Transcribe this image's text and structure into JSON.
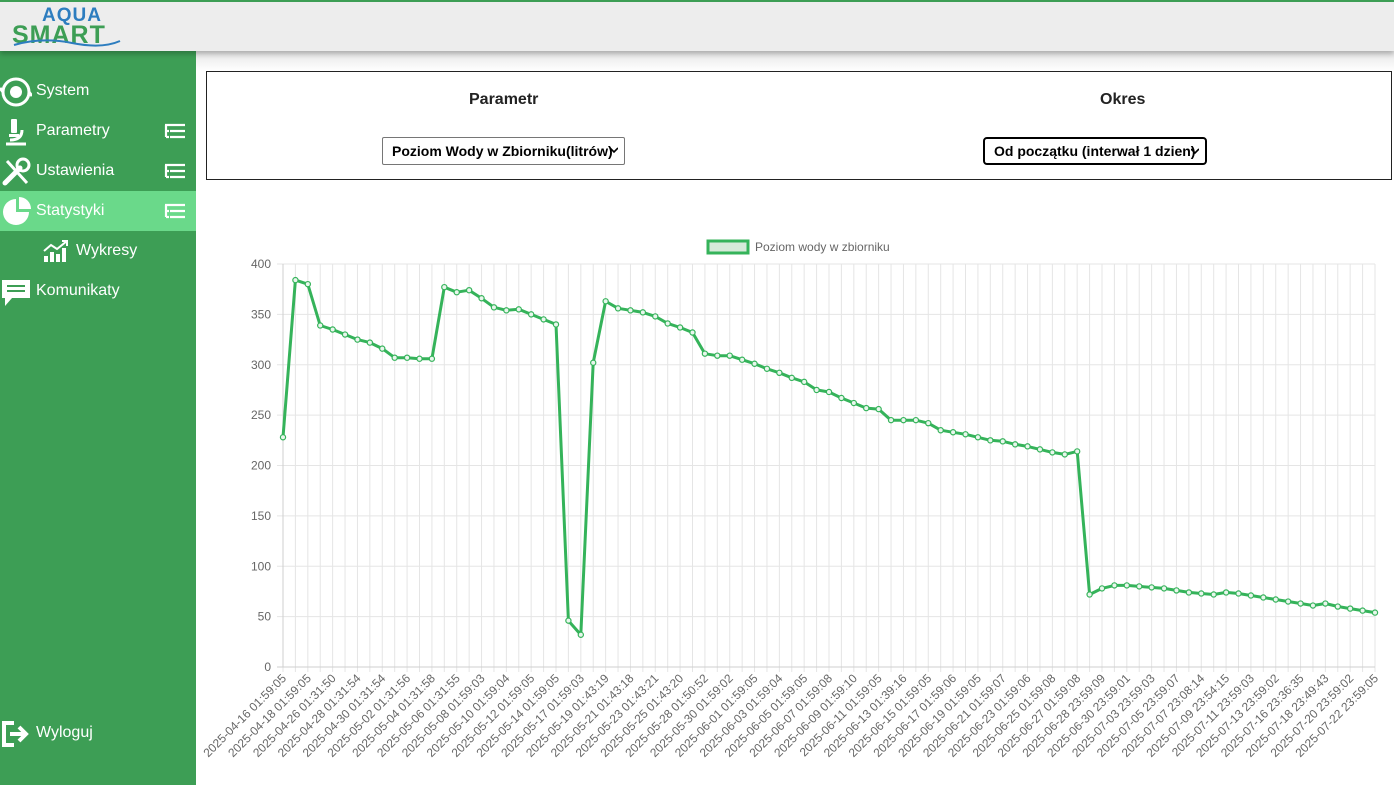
{
  "logo": {
    "line1": "AQUA",
    "line2": "SMART"
  },
  "sidebar": {
    "items": [
      {
        "label": "System",
        "icon": "recycle-gear-icon"
      },
      {
        "label": "Parametry",
        "icon": "microscope-icon"
      },
      {
        "label": "Ustawienia",
        "icon": "tools-icon"
      },
      {
        "label": "Statystyki",
        "icon": "pie-chart-icon"
      },
      {
        "label": "Wykresy",
        "icon": "line-chart-icon"
      },
      {
        "label": "Komunikaty",
        "icon": "message-icon"
      }
    ],
    "logout": {
      "label": "Wyloguj",
      "icon": "logout-icon"
    }
  },
  "filters": {
    "parametr": {
      "title": "Parametr",
      "selected": "Poziom Wody w Zbiorniku(litrów)"
    },
    "okres": {
      "title": "Okres",
      "selected": "Od początku (interwał 1 dzien)"
    }
  },
  "colors": {
    "sidebar": "#3d9e55",
    "active": "#6ad98a",
    "line": "#35b35a",
    "grid": "#e5e5e5"
  },
  "chart_data": {
    "type": "line",
    "legend": [
      "Poziom wody w zbiorniku"
    ],
    "ylim": [
      0,
      400
    ],
    "yticks": [
      0,
      50,
      100,
      150,
      200,
      250,
      300,
      350,
      400
    ],
    "tick_labels": [
      "2025-04-16 01:59:05",
      "2025-04-18 01:59:05",
      "2025-04-26 01:31:50",
      "2025-04-28 01:31:54",
      "2025-04-30 01:31:54",
      "2025-05-02 01:31:56",
      "2025-05-04 01:31:58",
      "2025-05-06 01:31:55",
      "2025-05-08 01:59:03",
      "2025-05-10 01:59:04",
      "2025-05-12 01:59:05",
      "2025-05-14 01:59:05",
      "2025-05-17 01:59:03",
      "2025-05-19 01:43:19",
      "2025-05-21 01:43:18",
      "2025-05-23 01:43:21",
      "2025-05-25 01:43:20",
      "2025-05-28 01:50:52",
      "2025-05-30 01:59:02",
      "2025-06-01 01:59:05",
      "2025-06-03 01:59:04",
      "2025-06-05 01:59:05",
      "2025-06-07 01:59:08",
      "2025-06-09 01:59:10",
      "2025-06-11 01:59:05",
      "2025-06-13 01:39:16",
      "2025-06-15 01:59:05",
      "2025-06-17 01:59:06",
      "2025-06-19 01:59:05",
      "2025-06-21 01:59:07",
      "2025-06-23 01:59:06",
      "2025-06-25 01:59:08",
      "2025-06-27 01:59:08",
      "2025-06-28 23:59:09",
      "2025-06-30 23:59:01",
      "2025-07-03 23:59:03",
      "2025-07-05 23:59:07",
      "2025-07-07 23:08:14",
      "2025-07-09 23:54:15",
      "2025-07-11 23:59:03",
      "2025-07-13 23:59:02",
      "2025-07-16 23:36:35",
      "2025-07-18 23:49:43",
      "2025-07-20 23:59:02",
      "2025-07-22 23:59:05"
    ],
    "series": [
      {
        "name": "Poziom wody w zbiorniku",
        "values": [
          228,
          384,
          380,
          339,
          335,
          330,
          325,
          322,
          316,
          307,
          307,
          306,
          306,
          377,
          372,
          374,
          366,
          357,
          354,
          355,
          350,
          345,
          340,
          46,
          32,
          302,
          363,
          356,
          354,
          352,
          348,
          341,
          337,
          332,
          311,
          309,
          309,
          305,
          301,
          296,
          292,
          287,
          283,
          275,
          273,
          267,
          262,
          257,
          256,
          245,
          245,
          245,
          242,
          235,
          233,
          231,
          228,
          225,
          224,
          221,
          219,
          216,
          213,
          211,
          214,
          72,
          78,
          81,
          81,
          80,
          79,
          78,
          76,
          74,
          73,
          72,
          74,
          73,
          71,
          69,
          67,
          65,
          63,
          61,
          63,
          60,
          58,
          56,
          54
        ]
      }
    ]
  }
}
